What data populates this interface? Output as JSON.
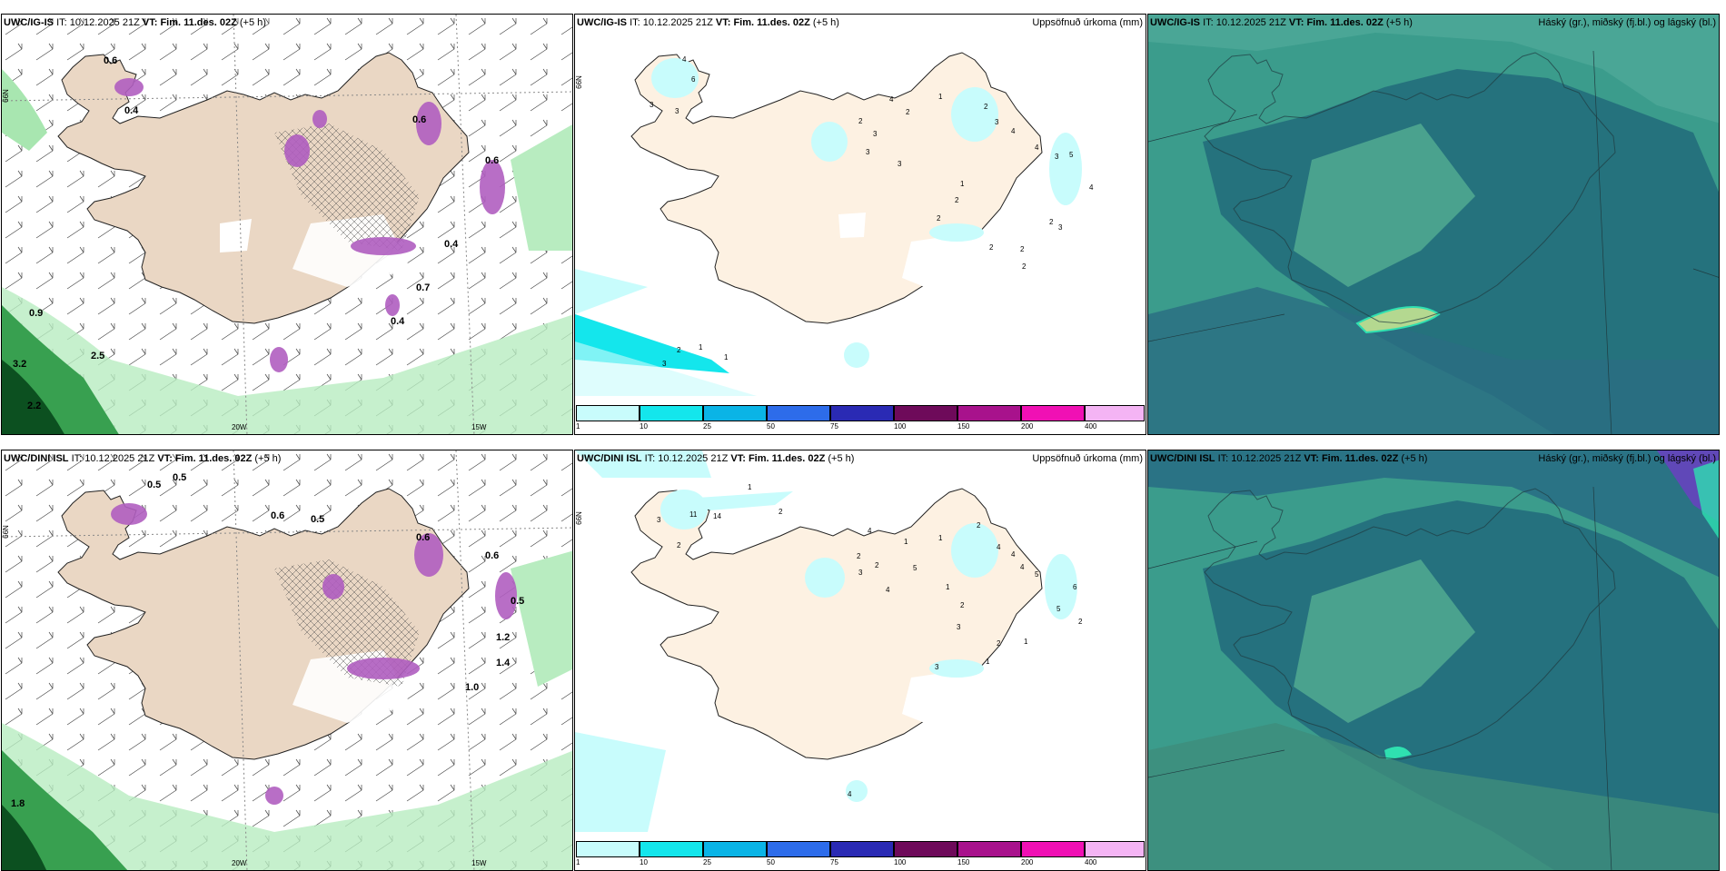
{
  "panels": [
    {
      "model": "UWC/IG-IS",
      "it_label": "IT:",
      "it_value": "10.12.2025 21Z",
      "vt_label": "VT:",
      "vt_value": "Fim. 11.des. 02Z",
      "offset": "(+5 h)",
      "right_title": "",
      "lon_labels": [
        "20W",
        "15W"
      ],
      "lat_label": "66N",
      "values": [
        "0.6",
        "0.4",
        "0.6",
        "0.4",
        "0.9",
        "3.2",
        "2.5",
        "2.2",
        "0.7",
        "0.6",
        "0.4"
      ]
    },
    {
      "model": "UWC/IG-IS",
      "it_label": "IT:",
      "it_value": "10.12.2025 21Z",
      "vt_label": "VT:",
      "vt_value": "Fim. 11.des. 02Z",
      "offset": "(+5 h)",
      "right_title": "Uppsöfnuð úrkoma (mm)",
      "lat_label": "66N",
      "contours": [
        "4",
        "6",
        "3",
        "2",
        "3",
        "3",
        "3",
        "4",
        "2",
        "1",
        "2",
        "3",
        "4",
        "4",
        "3",
        "5",
        "4",
        "3",
        "1",
        "2",
        "2",
        "2",
        "2",
        "3",
        "2",
        "1",
        "3",
        "2",
        "2",
        "1"
      ]
    },
    {
      "model": "UWC/IG-IS",
      "it_label": "IT:",
      "it_value": "10.12.2025 21Z",
      "vt_label": "VT:",
      "vt_value": "Fim. 11.des. 02Z",
      "offset": "(+5 h)",
      "right_title": "Háský (gr.), miðský (fj.bl.) og lágský (bl.)"
    },
    {
      "model": "UWC/DINI ISL",
      "it_label": "IT:",
      "it_value": "10.12.2025 21Z",
      "vt_label": "VT:",
      "vt_value": "Fim. 11.des. 02Z",
      "offset": "(+5 h)",
      "right_title": "",
      "lon_labels": [
        "20W",
        "15W"
      ],
      "lat_label": "66N",
      "values": [
        "0.5",
        "0.5",
        "0.6",
        "0.5",
        "0.6",
        "0.6",
        "1.2",
        "1.4",
        "1.0",
        "1.8",
        "0.5"
      ]
    },
    {
      "model": "UWC/DINI ISL",
      "it_label": "IT:",
      "it_value": "10.12.2025 21Z",
      "vt_label": "VT:",
      "vt_value": "Fim. 11.des. 02Z",
      "offset": "(+5 h)",
      "right_title": "Uppsöfnuð úrkoma (mm)",
      "lat_label": "66N",
      "contours": [
        "1",
        "2",
        "11",
        "14",
        "2",
        "3",
        "4",
        "2",
        "3",
        "2",
        "1",
        "1",
        "2",
        "4",
        "4",
        "4",
        "5",
        "6",
        "5",
        "3",
        "2",
        "1",
        "3",
        "2",
        "1",
        "1",
        "4",
        "5",
        "2",
        "4"
      ]
    },
    {
      "model": "UWC/DINI ISL",
      "it_label": "IT:",
      "it_value": "10.12.2025 21Z",
      "vt_label": "VT:",
      "vt_value": "Fim. 11.des. 02Z",
      "offset": "(+5 h)",
      "right_title": "Háský (gr.), miðský (fj.bl.) og lágský (bl.)"
    }
  ],
  "colorbar": {
    "ticks": [
      "1",
      "10",
      "25",
      "50",
      "75",
      "100",
      "150",
      "200",
      "400"
    ],
    "colors": [
      "#c8fcfc",
      "#14e6ec",
      "#0ab4e6",
      "#2d6cea",
      "#2a2ab4",
      "#6e0a5a",
      "#a8128c",
      "#f010b4",
      "#f4b4f4"
    ]
  }
}
